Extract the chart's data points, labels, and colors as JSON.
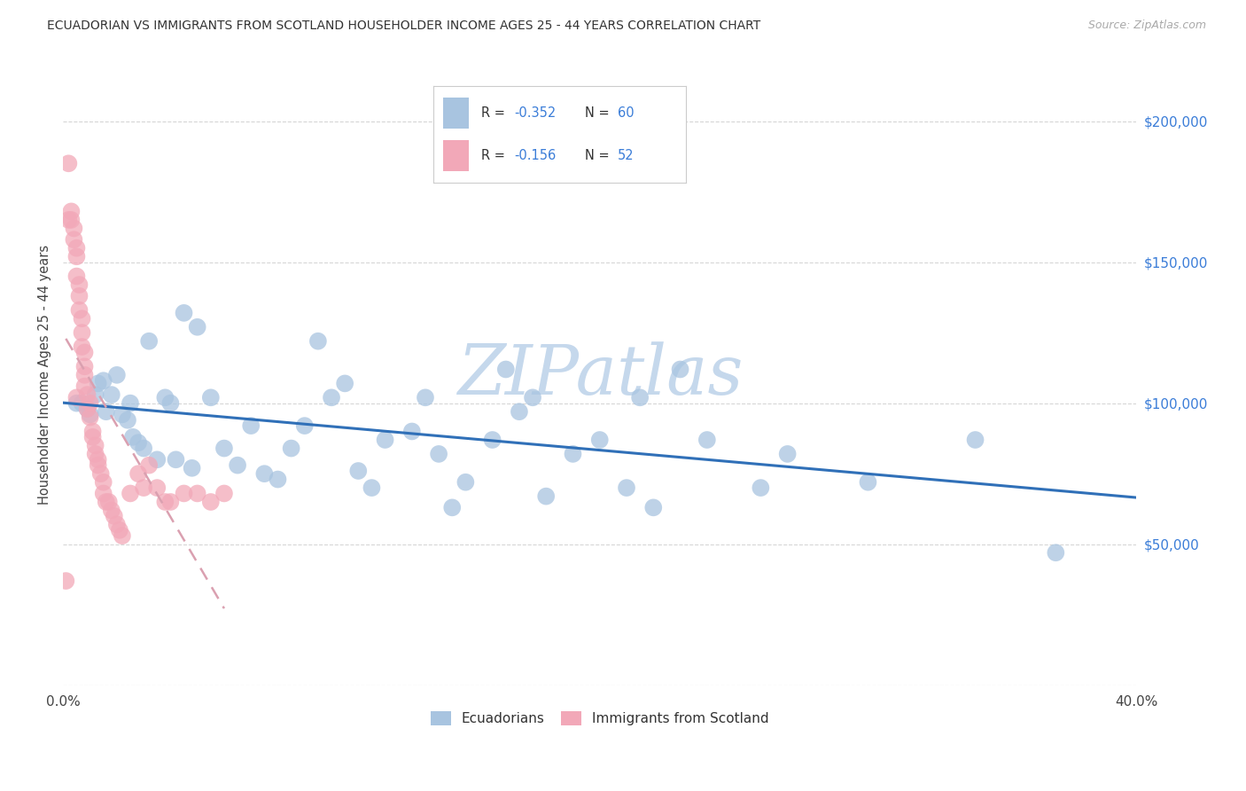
{
  "title": "ECUADORIAN VS IMMIGRANTS FROM SCOTLAND HOUSEHOLDER INCOME AGES 25 - 44 YEARS CORRELATION CHART",
  "source": "Source: ZipAtlas.com",
  "ylabel": "Householder Income Ages 25 - 44 years",
  "xlim": [
    0.0,
    0.4
  ],
  "ylim": [
    0,
    220000
  ],
  "yticks": [
    0,
    50000,
    100000,
    150000,
    200000
  ],
  "ytick_labels": [
    "",
    "$50,000",
    "$100,000",
    "$150,000",
    "$200,000"
  ],
  "legend_r1": "R = -0.352",
  "legend_n1": "N = 60",
  "legend_r2": "R = -0.156",
  "legend_n2": "N = 52",
  "blue_scatter_color": "#a8c4e0",
  "blue_line_color": "#3070b8",
  "pink_scatter_color": "#f2a8b8",
  "pink_line_color": "#d06878",
  "pink_dash_color": "#daa0b0",
  "legend_text_color": "#3b7dd8",
  "watermark_color": "#c5d8ec",
  "background_color": "#ffffff",
  "grid_color": "#cccccc",
  "blue_x": [
    0.005,
    0.007,
    0.009,
    0.01,
    0.012,
    0.013,
    0.015,
    0.016,
    0.018,
    0.02,
    0.022,
    0.024,
    0.025,
    0.026,
    0.028,
    0.03,
    0.032,
    0.035,
    0.038,
    0.04,
    0.042,
    0.045,
    0.048,
    0.05,
    0.055,
    0.06,
    0.065,
    0.07,
    0.075,
    0.08,
    0.085,
    0.09,
    0.095,
    0.1,
    0.105,
    0.11,
    0.115,
    0.12,
    0.13,
    0.135,
    0.14,
    0.145,
    0.15,
    0.16,
    0.165,
    0.17,
    0.175,
    0.18,
    0.19,
    0.2,
    0.21,
    0.215,
    0.22,
    0.23,
    0.24,
    0.26,
    0.27,
    0.3,
    0.34,
    0.37
  ],
  "blue_y": [
    100000,
    100000,
    98000,
    96000,
    103000,
    107000,
    108000,
    97000,
    103000,
    110000,
    96000,
    94000,
    100000,
    88000,
    86000,
    84000,
    122000,
    80000,
    102000,
    100000,
    80000,
    132000,
    77000,
    127000,
    102000,
    84000,
    78000,
    92000,
    75000,
    73000,
    84000,
    92000,
    122000,
    102000,
    107000,
    76000,
    70000,
    87000,
    90000,
    102000,
    82000,
    63000,
    72000,
    87000,
    112000,
    97000,
    102000,
    67000,
    82000,
    87000,
    70000,
    102000,
    63000,
    112000,
    87000,
    70000,
    82000,
    72000,
    87000,
    47000
  ],
  "pink_x": [
    0.001,
    0.002,
    0.003,
    0.003,
    0.004,
    0.004,
    0.005,
    0.005,
    0.005,
    0.006,
    0.006,
    0.006,
    0.007,
    0.007,
    0.007,
    0.008,
    0.008,
    0.008,
    0.008,
    0.009,
    0.009,
    0.01,
    0.01,
    0.011,
    0.011,
    0.012,
    0.012,
    0.013,
    0.013,
    0.014,
    0.015,
    0.015,
    0.016,
    0.017,
    0.018,
    0.019,
    0.02,
    0.021,
    0.022,
    0.025,
    0.028,
    0.03,
    0.032,
    0.035,
    0.038,
    0.04,
    0.045,
    0.05,
    0.055,
    0.06,
    0.002,
    0.005
  ],
  "pink_y": [
    37000,
    185000,
    168000,
    165000,
    162000,
    158000,
    155000,
    152000,
    145000,
    142000,
    138000,
    133000,
    130000,
    125000,
    120000,
    118000,
    113000,
    110000,
    106000,
    103000,
    98000,
    95000,
    100000,
    90000,
    88000,
    85000,
    82000,
    80000,
    78000,
    75000,
    72000,
    68000,
    65000,
    65000,
    62000,
    60000,
    57000,
    55000,
    53000,
    68000,
    75000,
    70000,
    78000,
    70000,
    65000,
    65000,
    68000,
    68000,
    65000,
    68000,
    165000,
    102000
  ]
}
